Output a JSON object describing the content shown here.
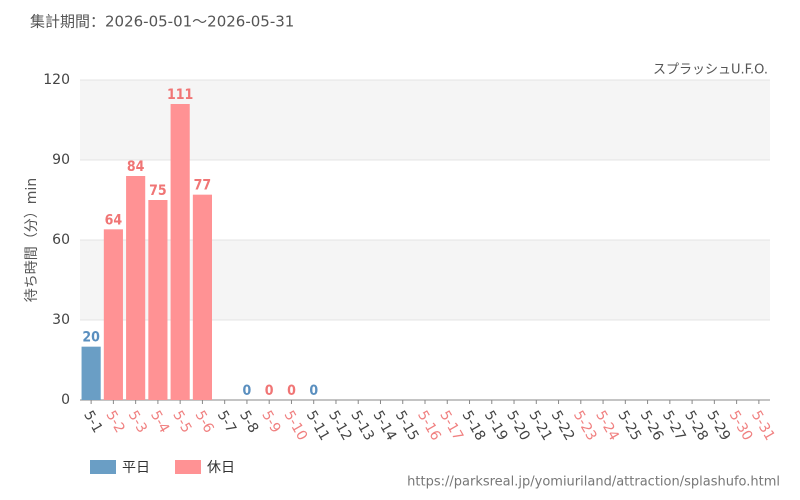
{
  "chart_data": {
    "type": "bar",
    "title": "集計期間：2026-05-01～2026-05-31",
    "subtitle": "スプラッシュU.F.O.",
    "y_label": "待ち時間（分）min",
    "source": "https://parksreal.jp/yomiuriland/attraction/splashufo.html",
    "categories": [
      "5-1",
      "5-2",
      "5-3",
      "5-4",
      "5-5",
      "5-6",
      "5-7",
      "5-8",
      "5-9",
      "5-10",
      "5-11",
      "5-12",
      "5-13",
      "5-14",
      "5-15",
      "5-16",
      "5-17",
      "5-18",
      "5-19",
      "5-20",
      "5-21",
      "5-22",
      "5-23",
      "5-24",
      "5-25",
      "5-26",
      "5-27",
      "5-28",
      "5-29",
      "5-30",
      "5-31"
    ],
    "category_colors": [
      "#444",
      "#f08080",
      "#f08080",
      "#f08080",
      "#f08080",
      "#f08080",
      "#444",
      "#444",
      "#f08080",
      "#f08080",
      "#444",
      "#444",
      "#444",
      "#444",
      "#444",
      "#f08080",
      "#f08080",
      "#444",
      "#444",
      "#444",
      "#444",
      "#444",
      "#f08080",
      "#f08080",
      "#444",
      "#444",
      "#444",
      "#444",
      "#444",
      "#f08080",
      "#f08080"
    ],
    "series": [
      {
        "name": "平日",
        "color": "#6a9ec5",
        "label_color": "#5a8fbf",
        "values": [
          20,
          null,
          null,
          null,
          null,
          null,
          null,
          0,
          null,
          null,
          0,
          null,
          null,
          null,
          null,
          null,
          null,
          null,
          null,
          null,
          null,
          null,
          null,
          null,
          null,
          null,
          null,
          null,
          null,
          null,
          null
        ]
      },
      {
        "name": "休日",
        "color": "#ff9294",
        "label_color": "#f07575",
        "values": [
          null,
          64,
          84,
          75,
          111,
          77,
          null,
          null,
          0,
          0,
          null,
          null,
          null,
          null,
          null,
          null,
          null,
          null,
          null,
          null,
          null,
          null,
          null,
          null,
          null,
          null,
          null,
          null,
          null,
          null,
          null
        ]
      }
    ],
    "ylim": [
      0,
      120
    ],
    "yticks": [
      0,
      30,
      60,
      90,
      120
    ],
    "grid": true
  }
}
